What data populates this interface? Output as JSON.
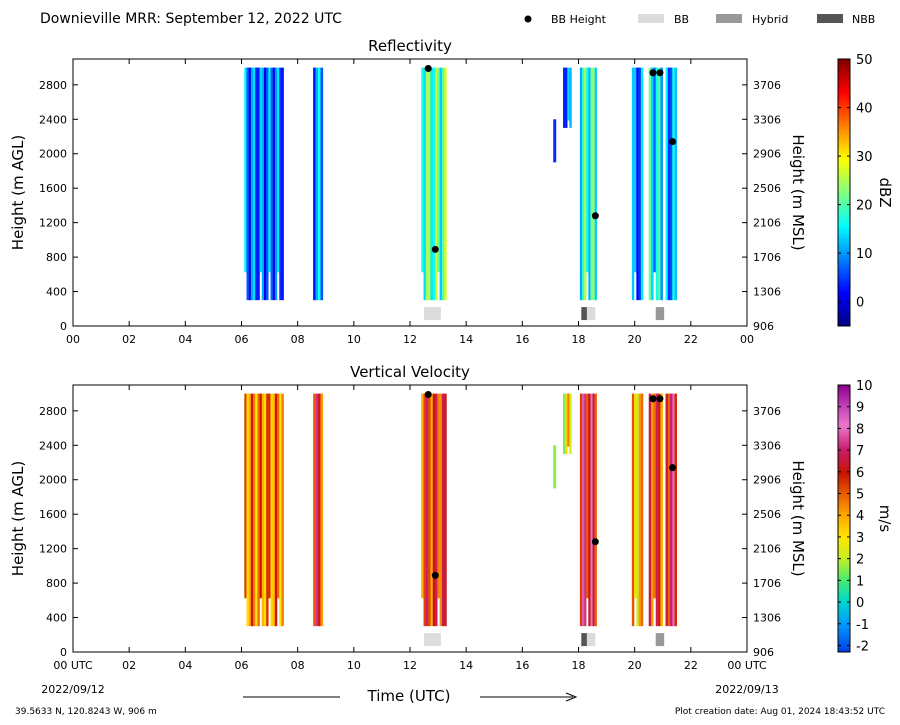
{
  "figure": {
    "title": "Downieville MRR:  September 12, 2022 UTC",
    "legend": [
      {
        "label": "BB Height",
        "kind": "dot",
        "color": "#000000"
      },
      {
        "label": "BB",
        "kind": "box",
        "color": "#dcdcdc"
      },
      {
        "label": "Hybrid",
        "kind": "box",
        "color": "#999999"
      },
      {
        "label": "NBB",
        "kind": "box",
        "color": "#555555"
      }
    ],
    "footer_left": "39.5633 N, 120.8243 W, 906 m",
    "footer_right": "Plot creation date: Aug 01, 2024 18:43:52 UTC",
    "x_axis_title": "Time (UTC)",
    "date_start": "2022/09/12",
    "date_end": "2022/09/13"
  },
  "chart_data": [
    {
      "type": "heatmap",
      "title": "Reflectivity",
      "xlabel": "",
      "ylabel": "Height (m AGL)",
      "ylabel_right": "Height (m MSL)",
      "colorbar_label": "dBZ",
      "colormap": "jet",
      "color_range": [
        -5,
        50
      ],
      "colorbar_ticks": [
        "0",
        "10",
        "20",
        "30",
        "40",
        "50"
      ],
      "xlim": [
        0,
        24
      ],
      "ylim": [
        0,
        3100
      ],
      "x_ticks": [
        "00",
        "02",
        "04",
        "06",
        "08",
        "10",
        "12",
        "14",
        "16",
        "18",
        "20",
        "22",
        "00"
      ],
      "y_ticks": [
        "0",
        "400",
        "800",
        "1200",
        "1600",
        "2000",
        "2400",
        "2800"
      ],
      "y_ticks_right": [
        "906",
        "1306",
        "1706",
        "2106",
        "2506",
        "2906",
        "3306",
        "3706"
      ],
      "precip_periods": [
        {
          "start": 6.1,
          "end": 7.5,
          "bottom": 300,
          "top": 3000,
          "value": 8
        },
        {
          "start": 8.55,
          "end": 8.9,
          "bottom": 300,
          "top": 3000,
          "value": 10
        },
        {
          "start": 12.4,
          "end": 13.3,
          "bottom": 300,
          "top": 3000,
          "value": 20
        },
        {
          "start": 17.1,
          "end": 17.2,
          "bottom": 1900,
          "top": 2400,
          "value": 6
        },
        {
          "start": 17.45,
          "end": 17.75,
          "bottom": 2300,
          "top": 3000,
          "value": 8
        },
        {
          "start": 18.05,
          "end": 18.65,
          "bottom": 300,
          "top": 3000,
          "value": 18
        },
        {
          "start": 19.9,
          "end": 20.3,
          "bottom": 300,
          "top": 3000,
          "value": 8
        },
        {
          "start": 20.5,
          "end": 21.0,
          "bottom": 300,
          "top": 3000,
          "value": 14
        },
        {
          "start": 21.1,
          "end": 21.5,
          "bottom": 300,
          "top": 3000,
          "value": 10
        }
      ],
      "bb_height_points": [
        {
          "x": 12.65,
          "y": 2990
        },
        {
          "x": 12.9,
          "y": 890
        },
        {
          "x": 18.6,
          "y": 1280
        },
        {
          "x": 20.65,
          "y": 2940
        },
        {
          "x": 20.9,
          "y": 2940
        },
        {
          "x": 21.35,
          "y": 2140
        }
      ],
      "bb_type_periods": [
        {
          "start": 12.5,
          "end": 13.1,
          "type": "BB"
        },
        {
          "start": 18.1,
          "end": 18.3,
          "type": "NBB"
        },
        {
          "start": 18.3,
          "end": 18.6,
          "type": "BB"
        },
        {
          "start": 20.75,
          "end": 21.05,
          "type": "Hybrid"
        }
      ]
    },
    {
      "type": "heatmap",
      "title": "Vertical Velocity",
      "xlabel": "Time (UTC)",
      "ylabel": "Height (m AGL)",
      "ylabel_right": "Height (m MSL)",
      "colorbar_label": "m/s",
      "colormap": "velocity",
      "color_range": [
        -2.3,
        10
      ],
      "colorbar_ticks": [
        "-2",
        "-1",
        "0",
        "1",
        "2",
        "3",
        "4",
        "5",
        "6",
        "7",
        "8",
        "9",
        "10"
      ],
      "xlim": [
        0,
        24
      ],
      "ylim": [
        0,
        3100
      ],
      "x_ticks": [
        "00 UTC",
        "02",
        "04",
        "06",
        "08",
        "10",
        "12",
        "14",
        "16",
        "18",
        "20",
        "22",
        "00 UTC"
      ],
      "y_ticks": [
        "0",
        "400",
        "800",
        "1200",
        "1600",
        "2000",
        "2400",
        "2800"
      ],
      "y_ticks_right": [
        "906",
        "1306",
        "1706",
        "2106",
        "2506",
        "2906",
        "3306",
        "3706"
      ],
      "precip_periods": [
        {
          "start": 6.1,
          "end": 7.5,
          "bottom": 300,
          "top": 3000,
          "value": 4.5
        },
        {
          "start": 8.55,
          "end": 8.9,
          "bottom": 300,
          "top": 3000,
          "value": 5.8
        },
        {
          "start": 12.4,
          "end": 13.3,
          "bottom": 300,
          "top": 3000,
          "value": 5.5
        },
        {
          "start": 17.1,
          "end": 17.2,
          "bottom": 1900,
          "top": 2400,
          "value": 3
        },
        {
          "start": 17.45,
          "end": 17.75,
          "bottom": 2300,
          "top": 3000,
          "value": 3
        },
        {
          "start": 18.05,
          "end": 18.65,
          "bottom": 300,
          "top": 3000,
          "value": 6.5
        },
        {
          "start": 19.9,
          "end": 20.3,
          "bottom": 300,
          "top": 3000,
          "value": 3.5
        },
        {
          "start": 20.5,
          "end": 21.0,
          "bottom": 300,
          "top": 3000,
          "value": 5.5
        },
        {
          "start": 21.1,
          "end": 21.5,
          "bottom": 300,
          "top": 3000,
          "value": 6.5
        }
      ],
      "bb_height_points": [
        {
          "x": 12.65,
          "y": 2990
        },
        {
          "x": 12.9,
          "y": 890
        },
        {
          "x": 18.6,
          "y": 1280
        },
        {
          "x": 20.65,
          "y": 2940
        },
        {
          "x": 20.9,
          "y": 2940
        },
        {
          "x": 21.35,
          "y": 2140
        }
      ],
      "bb_type_periods": [
        {
          "start": 12.5,
          "end": 13.1,
          "type": "BB"
        },
        {
          "start": 18.1,
          "end": 18.3,
          "type": "NBB"
        },
        {
          "start": 18.3,
          "end": 18.6,
          "type": "BB"
        },
        {
          "start": 20.75,
          "end": 21.05,
          "type": "Hybrid"
        }
      ]
    }
  ]
}
